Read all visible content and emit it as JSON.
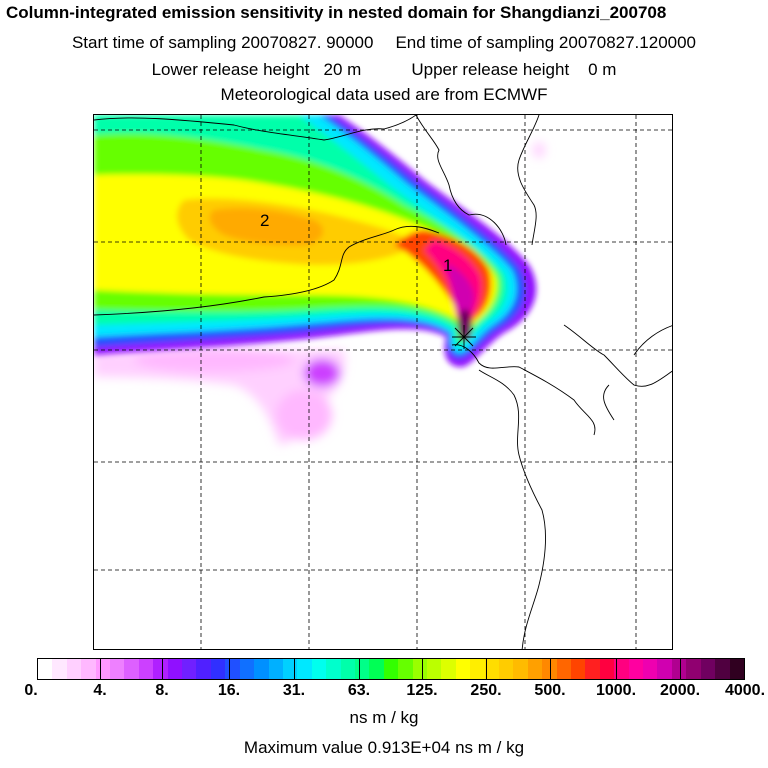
{
  "header": {
    "title": "Column-integrated emission sensitivity in nested domain for Shangdianzi_200708",
    "start_label": "Start time of sampling 20070827. 90000",
    "end_label": "End time of sampling 20070827.120000",
    "lower_label": "Lower release height   20 m",
    "upper_label": "Upper release height    0 m",
    "met_label": "Meteorological data used are from ECMWF"
  },
  "map": {
    "markers": [
      {
        "label": "1"
      },
      {
        "label": "2"
      }
    ]
  },
  "colorbar": {
    "ticks": [
      "0.",
      "4.",
      "8.",
      "16.",
      "31.",
      "63.",
      "125.",
      "250.",
      "500.",
      "1000.",
      "2000.",
      "4000."
    ],
    "units": "ns m / kg",
    "max_value_text": "Maximum value  0.913E+04 ns m / kg",
    "colors": [
      "#ffffff",
      "#ffe8ff",
      "#ffd0ff",
      "#ffb8ff",
      "#ff98ff",
      "#ee80ff",
      "#dd60ff",
      "#cc40ff",
      "#b020ff",
      "#9010ff",
      "#7020ff",
      "#5020ff",
      "#3030ff",
      "#2050ff",
      "#1070ff",
      "#0090ff",
      "#00b0ff",
      "#00d0ff",
      "#00e8ff",
      "#00ffee",
      "#00ffcc",
      "#00ffaa",
      "#00ff88",
      "#00ff55",
      "#33ff00",
      "#66ff00",
      "#99ff00",
      "#bbff00",
      "#ddff00",
      "#ffff00",
      "#ffee00",
      "#ffdd00",
      "#ffcc00",
      "#ffbb00",
      "#ffa000",
      "#ff8800",
      "#ff6600",
      "#ff4400",
      "#ff2020",
      "#ff0040",
      "#ff0080",
      "#ff00a0",
      "#ee00b0",
      "#d000b0",
      "#b00090",
      "#900070",
      "#700060",
      "#500040",
      "#300020"
    ]
  }
}
